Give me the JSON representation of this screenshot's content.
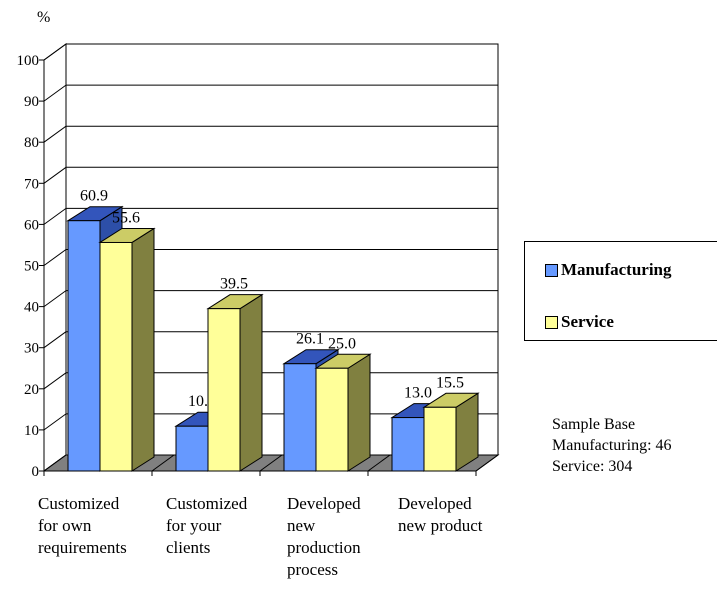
{
  "chart_data": {
    "type": "bar",
    "unit_label": "%",
    "categories": [
      [
        "Customized",
        "for own",
        "requirements"
      ],
      [
        "Customized",
        "for your",
        "clients"
      ],
      [
        "Developed",
        "new",
        "production",
        "process"
      ],
      [
        "Developed",
        "new product"
      ]
    ],
    "series": [
      {
        "name": "Manufacturing",
        "values": [
          60.9,
          10.9,
          26.1,
          13.0
        ],
        "labels": [
          "60.9",
          "10.9",
          "26.1",
          "13.0"
        ],
        "color": "#6699ff"
      },
      {
        "name": "Service",
        "values": [
          55.6,
          39.5,
          25.0,
          15.5
        ],
        "labels": [
          "55.6",
          "39.5",
          "25.0",
          "15.5"
        ],
        "color": "#ffff99"
      }
    ],
    "ylim": [
      0,
      100
    ],
    "yticks": [
      "0",
      "10",
      "20",
      "30",
      "40",
      "50",
      "60",
      "70",
      "80",
      "90",
      "100"
    ],
    "grid": true,
    "legend_position": "right",
    "three_d": true
  },
  "sample_base": {
    "title": "Sample Base",
    "manufacturing": "Manufacturing: 46",
    "service": "Service: 304"
  },
  "colors": {
    "manufacturing_front": "#6699ff",
    "manufacturing_side": "#2d4fa8",
    "manufacturing_top": "#3355bb",
    "service_front": "#ffff99",
    "service_side": "#808040",
    "service_top": "#cccc66",
    "floor": "#808080"
  }
}
